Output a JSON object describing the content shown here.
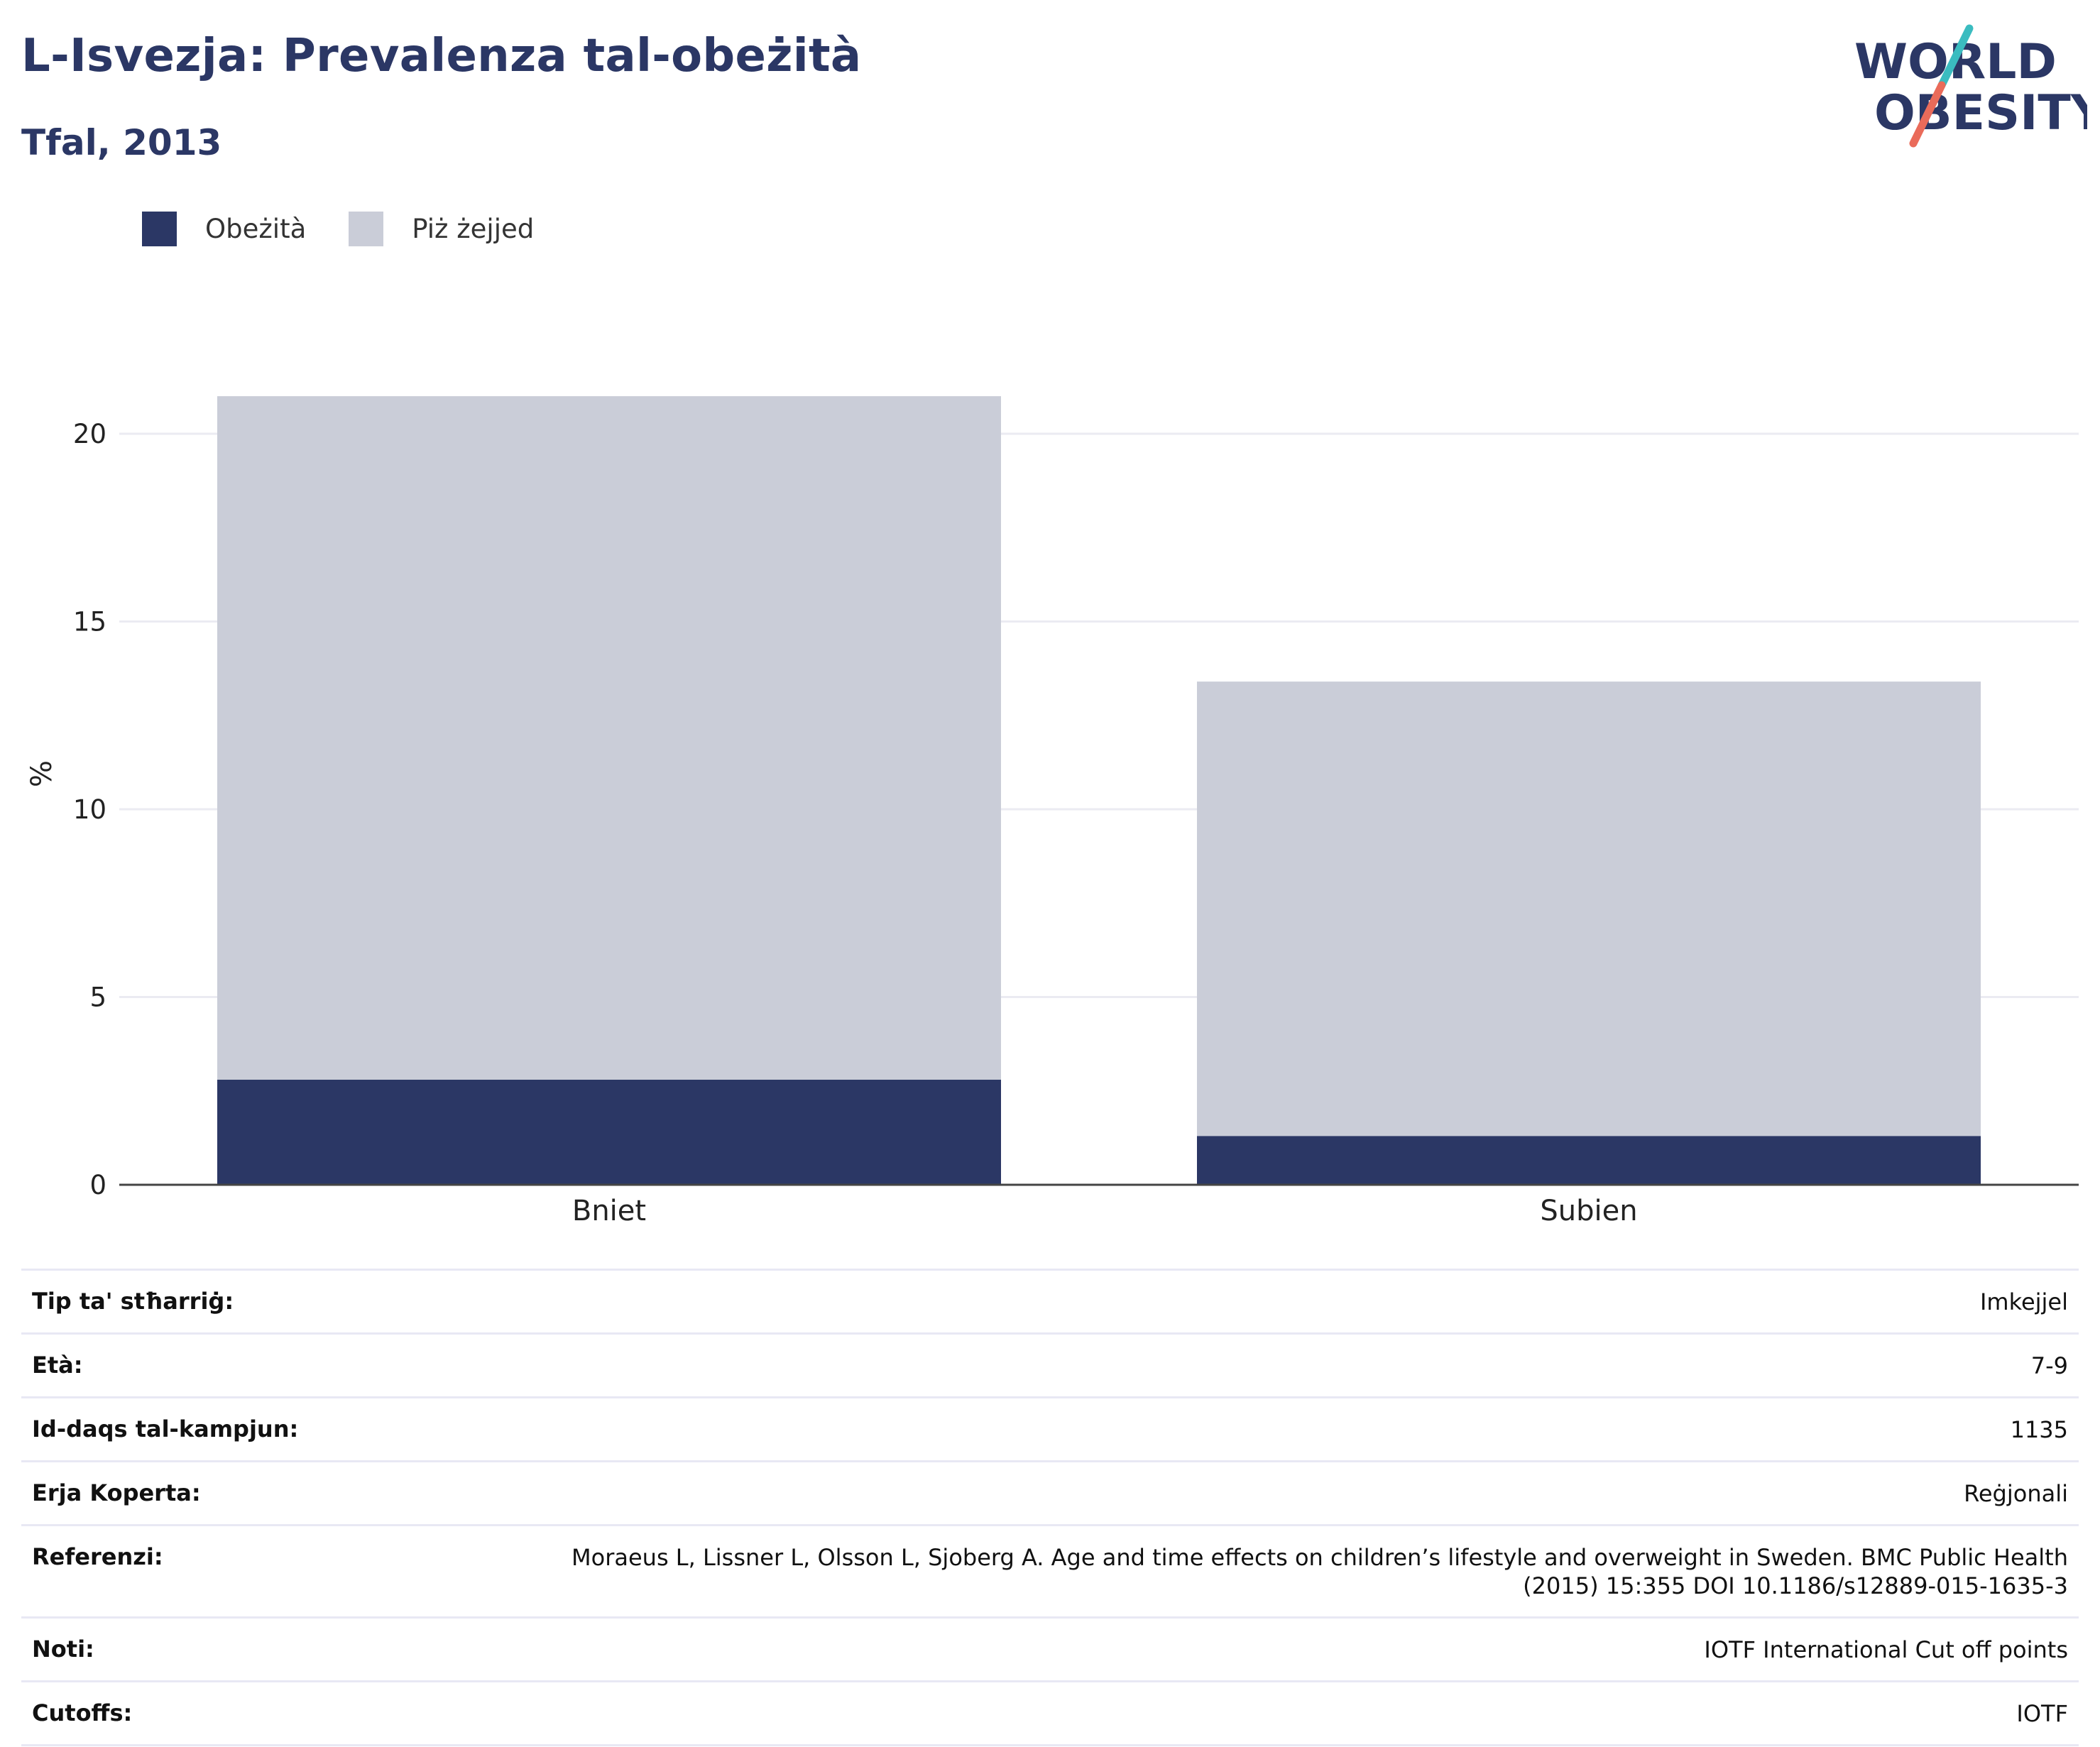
{
  "header": {
    "title": "L-Isvezja: Prevalenza tal-obeżità",
    "subtitle": "Tfal, 2013"
  },
  "logo": {
    "line1": "WORLD",
    "line2": "OBESITY",
    "colors": {
      "text": "#2b3765",
      "slash_teal": "#3bbcc0",
      "slash_coral": "#ea6b5a"
    }
  },
  "legend": [
    {
      "label": "Obeżità",
      "color": "#2b3765"
    },
    {
      "label": "Piż żejjed",
      "color": "#cacdd8"
    }
  ],
  "chart_data": {
    "type": "bar",
    "stacked": true,
    "categories": [
      "Bniet",
      "Subien"
    ],
    "series": [
      {
        "name": "Obeżità",
        "values": [
          2.8,
          1.3
        ],
        "color": "#2b3765"
      },
      {
        "name": "Piż żejjed",
        "values": [
          18.2,
          12.1
        ],
        "color": "#cacdd8"
      }
    ],
    "ylabel": "%",
    "ylim": [
      0,
      21
    ],
    "yticks": [
      0,
      5,
      10,
      15,
      20
    ],
    "grid": true,
    "legend_position": "top-left"
  },
  "meta": [
    {
      "label": "Tip ta' stħarriġ:",
      "value": "Imkejjel"
    },
    {
      "label": "Età:",
      "value": "7-9"
    },
    {
      "label": "Id-daqs tal-kampjun:",
      "value": "1135"
    },
    {
      "label": "Erja Koperta:",
      "value": "Reġjonali"
    },
    {
      "label": "Referenzi:",
      "value": "Moraeus L, Lissner L, Olsson L, Sjoberg A. Age and time effects on children’s lifestyle and overweight in Sweden. BMC Public Health (2015) 15:355 DOI 10.1186/s12889-015-1635-3"
    },
    {
      "label": "Noti:",
      "value": "IOTF International Cut off points"
    },
    {
      "label": "Cutoffs:",
      "value": "IOTF"
    }
  ]
}
